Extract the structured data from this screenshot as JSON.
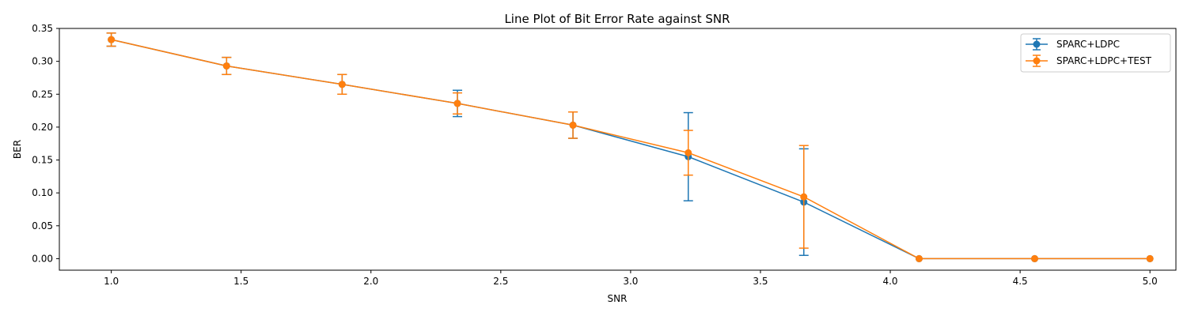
{
  "chart_data": {
    "type": "line",
    "title": "Line Plot of Bit Error Rate against SNR",
    "xlabel": "SNR",
    "ylabel": "BER",
    "xlim": [
      0.8,
      5.1
    ],
    "ylim": [
      -0.0175,
      0.35
    ],
    "xticks": [
      "1.0",
      "1.5",
      "2.0",
      "2.5",
      "3.0",
      "3.5",
      "4.0",
      "4.5",
      "5.0"
    ],
    "yticks": [
      "0.00",
      "0.05",
      "0.10",
      "0.15",
      "0.20",
      "0.25",
      "0.30",
      "0.35"
    ],
    "grid": false,
    "legend_position": "top-right",
    "x": [
      1.0,
      1.444,
      1.889,
      2.333,
      2.778,
      3.222,
      3.667,
      4.111,
      4.556,
      5.0
    ],
    "series": [
      {
        "name": "SPARC+LDPC",
        "color": "#1f77b4",
        "values": [
          0.333,
          0.293,
          0.265,
          0.236,
          0.203,
          0.155,
          0.086,
          0.0,
          0.0,
          0.0
        ],
        "errors": [
          0.01,
          0.013,
          0.015,
          0.02,
          0.02,
          0.067,
          0.081,
          0.0,
          0.0,
          0.0
        ]
      },
      {
        "name": "SPARC+LDPC+TEST",
        "color": "#ff7f0e",
        "values": [
          0.333,
          0.293,
          0.265,
          0.236,
          0.203,
          0.161,
          0.094,
          0.0,
          0.0,
          0.0
        ],
        "errors": [
          0.01,
          0.013,
          0.015,
          0.016,
          0.02,
          0.034,
          0.078,
          0.0,
          0.0,
          0.0
        ]
      }
    ]
  }
}
